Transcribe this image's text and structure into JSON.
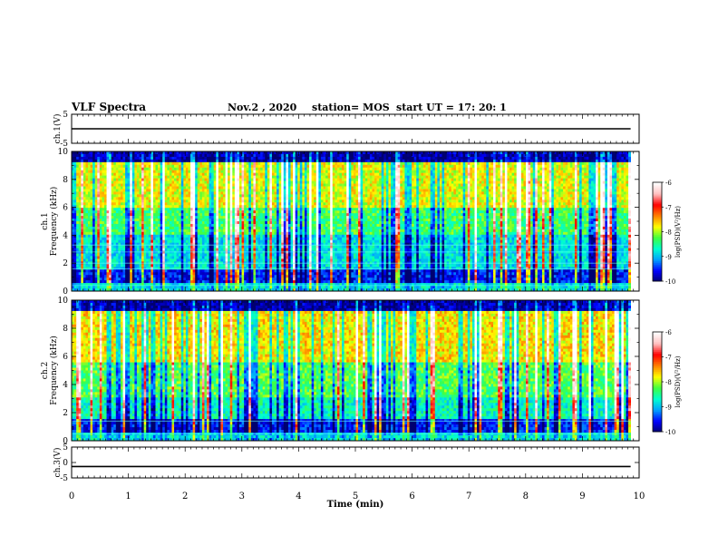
{
  "header": {
    "title": "VLF Spectra",
    "date": "Nov.2  , 2020",
    "station": "station= MOS",
    "start": "start  UT  =   17: 20: 1"
  },
  "chart_data": [
    {
      "type": "line",
      "name": "ch1-waveform",
      "ylabel": "ch.1(V)",
      "ylim": [
        -5,
        5
      ],
      "yticks": [
        "5",
        "-5"
      ],
      "xlim": [
        0,
        10
      ],
      "series": [
        {
          "values_constant": 0,
          "description_level": 0
        }
      ]
    },
    {
      "type": "heatmap",
      "name": "ch1-spectrogram",
      "ylabel": "ch.1\nFrequency (kHz)",
      "ylabel_lines": [
        "ch.1",
        "Frequency (kHz)"
      ],
      "ylim": [
        0,
        10
      ],
      "yticks": [
        "0",
        "2",
        "4",
        "6",
        "8",
        "10"
      ],
      "xlim": [
        0,
        10
      ],
      "data_extent_x": [
        0,
        9.85
      ],
      "colorbar": {
        "label": "log(PSD)(V²/Hz)",
        "range": [
          -10,
          -6
        ],
        "ticks": [
          "-6",
          "-7",
          "-8",
          "-9",
          "-10"
        ]
      }
    },
    {
      "type": "heatmap",
      "name": "ch2-spectrogram",
      "ylabel": "ch.2\nFrequency (kHz)",
      "ylabel_lines": [
        "ch.2",
        "Frequency (kHz)"
      ],
      "ylim": [
        0,
        10
      ],
      "yticks": [
        "0",
        "2",
        "4",
        "6",
        "8",
        "10"
      ],
      "xlim": [
        0,
        10
      ],
      "data_extent_x": [
        0,
        9.85
      ],
      "colorbar": {
        "label": "log(PSD)(V²/Hz)",
        "range": [
          -10,
          -6
        ],
        "ticks": [
          "-6",
          "-7",
          "-8",
          "-9",
          "-10"
        ]
      }
    },
    {
      "type": "line",
      "name": "ch3-waveform",
      "ylabel": "ch.3(V)",
      "ylim": [
        -5,
        5
      ],
      "yticks": [
        "5",
        "0",
        "-5"
      ],
      "xlim": [
        0,
        10
      ],
      "series": [
        {
          "values_constant": -1.3
        }
      ]
    }
  ],
  "xaxis": {
    "label": "Time  (min)",
    "ticks": [
      "0",
      "1",
      "2",
      "3",
      "4",
      "5",
      "6",
      "7",
      "8",
      "9",
      "10"
    ]
  },
  "colors": {
    "colormap": [
      "#000070",
      "#0000ff",
      "#00a0ff",
      "#00ffd0",
      "#40ff40",
      "#ffff00",
      "#ff8000",
      "#ff0000",
      "#ffc0c0",
      "#ffffff"
    ]
  }
}
